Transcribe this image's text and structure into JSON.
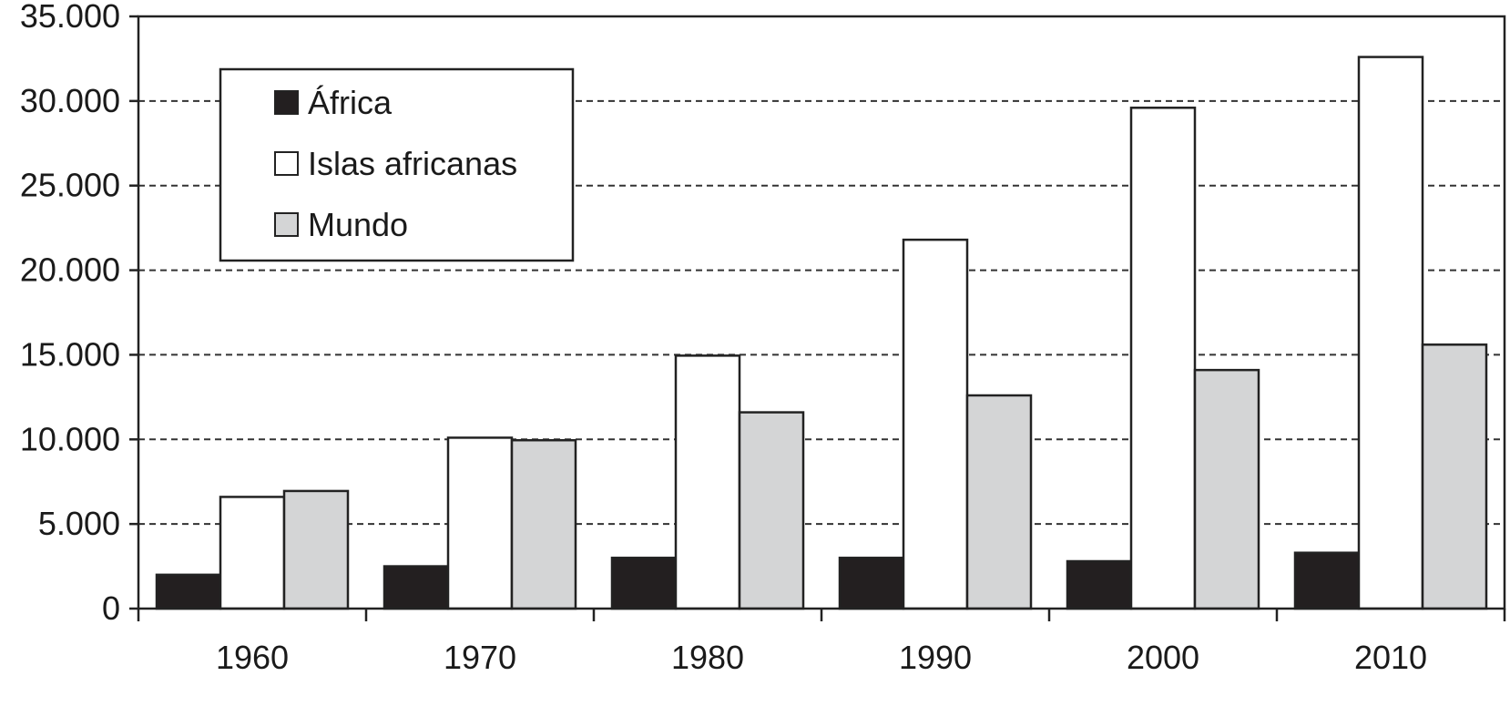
{
  "chart_data": {
    "type": "bar",
    "categories": [
      "1960",
      "1970",
      "1980",
      "1990",
      "2000",
      "2010"
    ],
    "series": [
      {
        "name": "África",
        "color": "#231f20",
        "values": [
          2000,
          2500,
          3000,
          3000,
          2800,
          3300
        ]
      },
      {
        "name": "Islas africanas",
        "color": "#ffffff",
        "values": [
          6600,
          10100,
          14950,
          21800,
          29600,
          32600
        ]
      },
      {
        "name": "Mundo",
        "color": "#d4d5d6",
        "values": [
          6950,
          9950,
          11600,
          12600,
          14100,
          15600
        ]
      }
    ],
    "ylim": [
      0,
      35000
    ],
    "yticks": [
      0,
      5000,
      10000,
      15000,
      20000,
      25000,
      30000,
      35000
    ],
    "ytick_labels": [
      "0",
      "5.000",
      "10.000",
      "15.000",
      "20.000",
      "25.000",
      "30.000",
      "35.000"
    ],
    "grid": "horizontal dashed",
    "legend_position": "top-left",
    "title": "",
    "xlabel": "",
    "ylabel": ""
  }
}
